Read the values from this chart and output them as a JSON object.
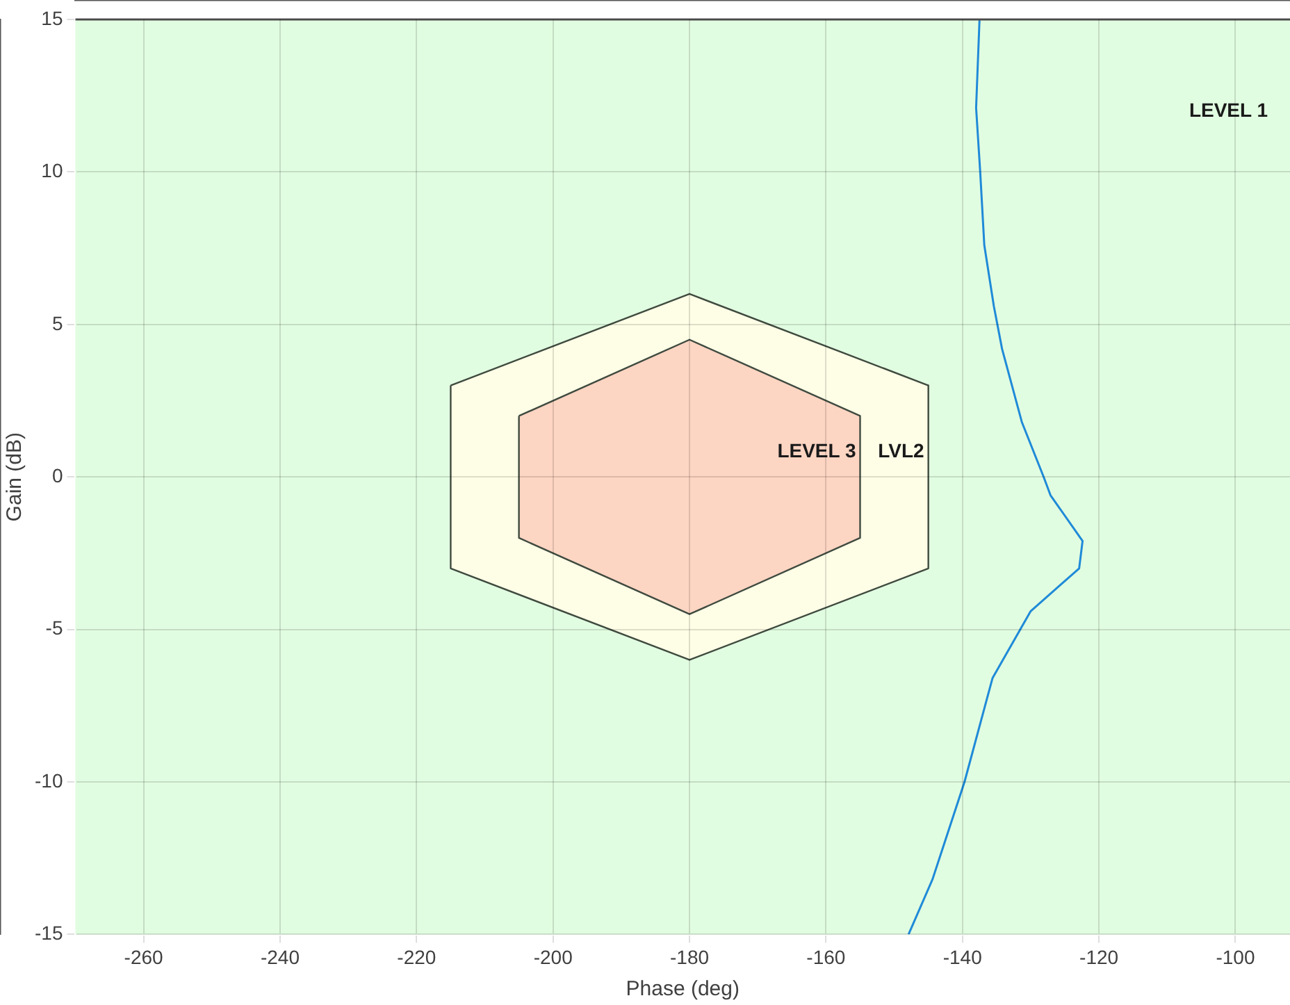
{
  "chart_data": {
    "type": "line",
    "xlabel": "Phase (deg)",
    "ylabel": "Gain (dB)",
    "xlim": [
      -270,
      -92
    ],
    "xticks": [
      -260,
      -240,
      -220,
      -200,
      -180,
      -160,
      -140,
      -120,
      -100
    ],
    "ylim": [
      -15,
      15
    ],
    "yticks": [
      -15,
      -10,
      -5,
      0,
      5,
      10,
      15
    ],
    "grid": true,
    "legend": false,
    "bands": [
      {
        "axis": "y",
        "from": -15,
        "to": 15,
        "color": "#e1fde1",
        "label": "LEVEL 1"
      }
    ],
    "series": [
      {
        "type": "area",
        "name": "LVL2",
        "color": "#fefee6",
        "x": [
          -215,
          -180,
          -145,
          -145,
          -180,
          -215,
          -215
        ],
        "values": [
          3,
          6,
          3,
          -3,
          -6,
          -3,
          3
        ]
      },
      {
        "type": "area",
        "name": "LEVEL 3",
        "color": "#fdd5c3",
        "x": [
          -205,
          -180,
          -155,
          -155,
          -180,
          -205,
          -205
        ],
        "values": [
          2,
          4.5,
          2,
          -2,
          -4.5,
          -2,
          2
        ]
      },
      {
        "color": "#1f8ad8",
        "x": [
          -137.5,
          -138,
          -137.4,
          -136.8,
          -135.4,
          -134.2,
          -131.3,
          -128.1,
          -127.1,
          -122.4,
          -122.9,
          -130,
          -135.6,
          -139.7,
          -144.4,
          -147.9
        ],
        "values": [
          15,
          12.1,
          10,
          7.6,
          5.6,
          4.2,
          1.8,
          0,
          -0.6,
          -2.1,
          -3,
          -4.4,
          -6.6,
          -10,
          -13.2,
          -15
        ]
      }
    ]
  }
}
